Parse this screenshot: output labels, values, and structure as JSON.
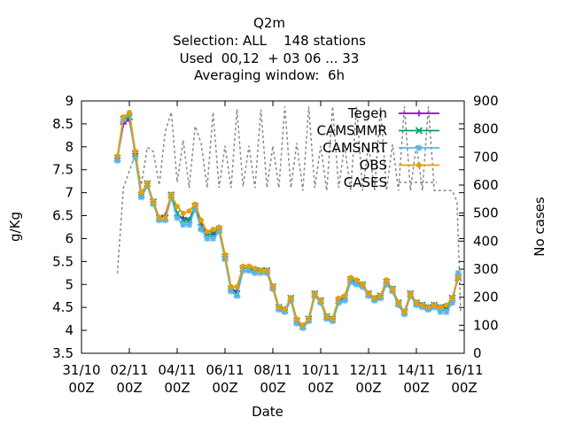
{
  "chart_data": {
    "type": "line",
    "title": [
      "Q2m",
      "Selection: ALL    148 stations",
      "Used  00,12  + 03 06 ... 33",
      "Averaging window:  6h"
    ],
    "xlabel": "Date",
    "ylabel": "g/Kg",
    "y2label": "No cases",
    "xlim": [
      0,
      16
    ],
    "ylim": [
      3.5,
      9
    ],
    "y2lim": [
      0,
      900
    ],
    "x_ticks": [
      {
        "x": 0,
        "line1": "31/10",
        "line2": "00Z"
      },
      {
        "x": 2,
        "line1": "02/11",
        "line2": "00Z"
      },
      {
        "x": 4,
        "line1": "04/11",
        "line2": "00Z"
      },
      {
        "x": 6,
        "line1": "06/11",
        "line2": "00Z"
      },
      {
        "x": 8,
        "line1": "08/11",
        "line2": "00Z"
      },
      {
        "x": 10,
        "line1": "10/11",
        "line2": "00Z"
      },
      {
        "x": 12,
        "line1": "12/11",
        "line2": "00Z"
      },
      {
        "x": 14,
        "line1": "14/11",
        "line2": "00Z"
      },
      {
        "x": 16,
        "line1": "16/11",
        "line2": "00Z"
      }
    ],
    "y_ticks": [
      "3.5",
      "4",
      "4.5",
      "5",
      "5.5",
      "6",
      "6.5",
      "7",
      "7.5",
      "8",
      "8.5",
      "9"
    ],
    "y2_ticks": [
      "0",
      "100",
      "200",
      "300",
      "400",
      "500",
      "600",
      "700",
      "800",
      "900"
    ],
    "x": [
      1.5,
      1.75,
      2.0,
      2.25,
      2.5,
      2.75,
      3.0,
      3.25,
      3.5,
      3.75,
      4.0,
      4.25,
      4.5,
      4.75,
      5.0,
      5.25,
      5.5,
      5.75,
      6.0,
      6.25,
      6.5,
      6.75,
      7.0,
      7.25,
      7.5,
      7.75,
      8.0,
      8.25,
      8.5,
      8.75,
      9.0,
      9.25,
      9.5,
      9.75,
      10.0,
      10.25,
      10.5,
      10.75,
      11.0,
      11.25,
      11.5,
      11.75,
      12.0,
      12.25,
      12.5,
      12.75,
      13.0,
      13.25,
      13.5,
      13.75,
      14.0,
      14.25,
      14.5,
      14.75,
      15.0,
      15.25,
      15.5,
      15.75
    ],
    "series": [
      {
        "name": "Tegen",
        "color": "#9400d3",
        "marker": "plus",
        "values": [
          7.75,
          8.5,
          8.6,
          7.85,
          6.95,
          7.2,
          6.8,
          6.45,
          6.5,
          6.95,
          6.5,
          6.45,
          6.4,
          6.7,
          6.3,
          6.1,
          6.1,
          6.2,
          5.6,
          4.9,
          4.85,
          5.35,
          5.35,
          5.3,
          5.3,
          5.3,
          4.95,
          4.5,
          4.45,
          4.7,
          4.2,
          4.1,
          4.25,
          4.8,
          4.65,
          4.3,
          4.25,
          4.65,
          4.7,
          5.1,
          5.05,
          5.0,
          4.8,
          4.7,
          4.75,
          5.05,
          4.9,
          4.6,
          4.4,
          4.8,
          4.6,
          4.55,
          4.5,
          4.55,
          4.5,
          4.5,
          4.7,
          5.15
        ]
      },
      {
        "name": "CAMSMMR",
        "color": "#009e73",
        "marker": "x",
        "values": [
          7.75,
          8.6,
          8.65,
          7.85,
          6.95,
          7.2,
          6.8,
          6.45,
          6.45,
          6.95,
          6.55,
          6.4,
          6.4,
          6.7,
          6.25,
          6.1,
          6.1,
          6.2,
          5.6,
          4.9,
          4.8,
          5.35,
          5.35,
          5.3,
          5.3,
          5.3,
          4.95,
          4.5,
          4.45,
          4.7,
          4.2,
          4.1,
          4.25,
          4.8,
          4.65,
          4.3,
          4.25,
          4.65,
          4.7,
          5.1,
          5.05,
          5.0,
          4.8,
          4.7,
          4.75,
          5.05,
          4.9,
          4.6,
          4.4,
          4.8,
          4.6,
          4.55,
          4.5,
          4.55,
          4.5,
          4.5,
          4.7,
          5.15
        ]
      },
      {
        "name": "CAMSNRT",
        "color": "#56b4e9",
        "marker": "star",
        "values": [
          7.7,
          8.6,
          8.7,
          7.75,
          6.9,
          7.15,
          6.75,
          6.4,
          6.4,
          6.9,
          6.45,
          6.3,
          6.3,
          6.65,
          6.2,
          6.0,
          6.0,
          6.15,
          5.55,
          4.85,
          4.75,
          5.3,
          5.3,
          5.25,
          5.25,
          5.25,
          4.9,
          4.45,
          4.4,
          4.65,
          4.15,
          4.05,
          4.2,
          4.75,
          4.6,
          4.25,
          4.2,
          4.6,
          4.65,
          5.05,
          5.0,
          4.95,
          4.75,
          4.65,
          4.7,
          5.0,
          4.85,
          4.55,
          4.35,
          4.75,
          4.55,
          4.5,
          4.45,
          4.5,
          4.4,
          4.4,
          4.6,
          5.25
        ]
      },
      {
        "name": "OBS",
        "color": "#e69f00",
        "marker": "circle",
        "values": [
          7.8,
          8.65,
          8.75,
          7.9,
          7.0,
          7.2,
          6.8,
          6.45,
          6.45,
          6.95,
          6.7,
          6.55,
          6.6,
          6.75,
          6.4,
          6.15,
          6.2,
          6.25,
          5.65,
          4.95,
          4.95,
          5.4,
          5.4,
          5.35,
          5.3,
          5.3,
          4.95,
          4.5,
          4.45,
          4.7,
          4.25,
          4.1,
          4.25,
          4.8,
          4.65,
          4.3,
          4.25,
          4.7,
          4.75,
          5.15,
          5.1,
          5.0,
          4.8,
          4.7,
          4.75,
          5.1,
          4.9,
          4.6,
          4.4,
          4.8,
          4.6,
          4.55,
          4.5,
          4.55,
          4.5,
          4.55,
          4.7,
          5.15
        ]
      },
      {
        "name": "CASES",
        "color": "#888888",
        "dash": true,
        "axis": "y2",
        "x": [
          1.5,
          1.75,
          2.0,
          2.25,
          2.5,
          2.75,
          3.0,
          3.25,
          3.5,
          3.75,
          4.0,
          4.25,
          4.5,
          4.75,
          5.0,
          5.25,
          5.5,
          5.75,
          6.0,
          6.25,
          6.5,
          6.75,
          7.0,
          7.25,
          7.5,
          7.75,
          8.0,
          8.25,
          8.5,
          8.75,
          9.0,
          9.25,
          9.5,
          9.75,
          10.0,
          10.25,
          10.5,
          10.75,
          11.0,
          11.25,
          11.5,
          11.75,
          12.0,
          12.25,
          12.5,
          12.75,
          13.0,
          13.25,
          13.5,
          13.75,
          14.0,
          14.25,
          14.5,
          14.75,
          15.0,
          15.25,
          15.5,
          15.7,
          15.85
        ],
        "values": [
          285,
          590,
          650,
          710,
          600,
          735,
          720,
          600,
          790,
          860,
          610,
          760,
          590,
          810,
          750,
          590,
          860,
          590,
          740,
          590,
          870,
          595,
          740,
          590,
          870,
          590,
          740,
          590,
          880,
          590,
          750,
          580,
          880,
          590,
          740,
          580,
          880,
          590,
          740,
          580,
          880,
          580,
          745,
          580,
          880,
          580,
          745,
          580,
          880,
          580,
          745,
          580,
          880,
          580,
          580,
          580,
          580,
          540,
          140
        ]
      }
    ]
  }
}
